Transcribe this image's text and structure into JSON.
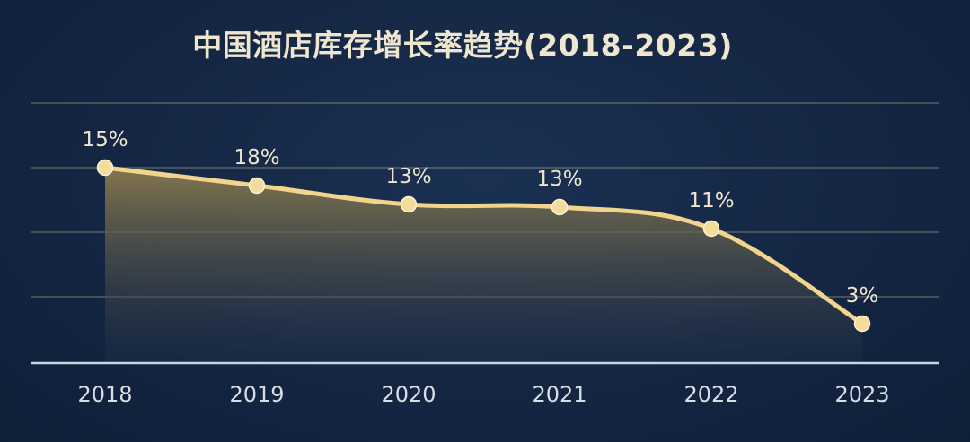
{
  "chart_data": {
    "type": "area",
    "title": "中国酒店库存增长率趋势(2018-2023)",
    "xlabel": "",
    "ylabel": "",
    "categories": [
      "2018",
      "2019",
      "2020",
      "2021",
      "2022",
      "2023"
    ],
    "values": [
      15,
      18,
      13,
      13,
      11,
      3
    ],
    "value_labels": [
      "15%",
      "18%",
      "13%",
      "13%",
      "11%",
      "3%"
    ],
    "grid": true,
    "legend": "none",
    "colors": {
      "line": "#f1d58c",
      "marker": "#f3dc9c",
      "area_top": "#8a7a4e",
      "background": "#142643",
      "gridline": "#8f8f7d",
      "baseline": "#c9d3e2"
    }
  }
}
